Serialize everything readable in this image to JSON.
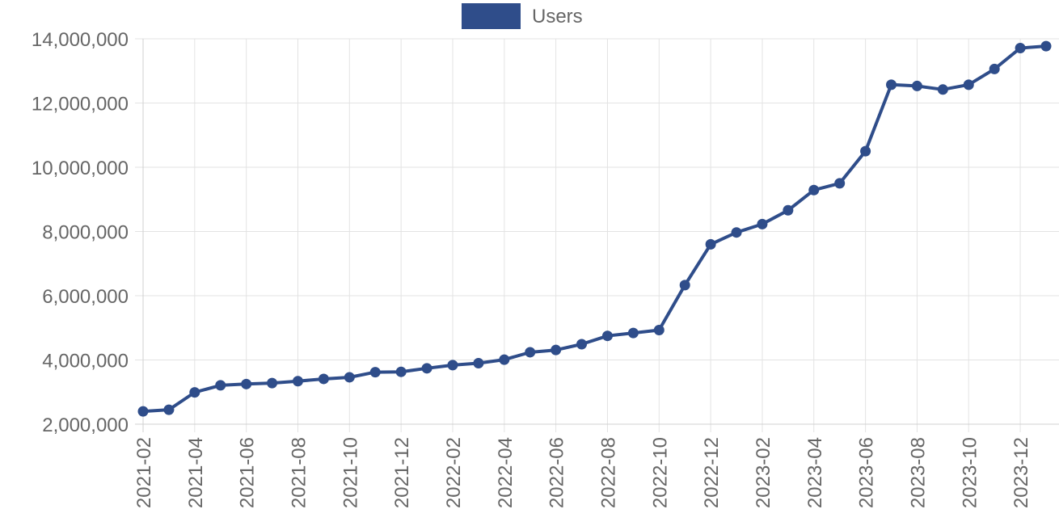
{
  "chart_data": {
    "type": "line",
    "title": "",
    "xlabel": "",
    "ylabel": "",
    "legend": {
      "position": "top-center",
      "label": "Users"
    },
    "grid": true,
    "ylim": [
      2000000,
      14000000
    ],
    "y_ticks": [
      2000000,
      4000000,
      6000000,
      8000000,
      10000000,
      12000000,
      14000000
    ],
    "y_tick_labels": [
      "2,000,000",
      "4,000,000",
      "6,000,000",
      "8,000,000",
      "10,000,000",
      "12,000,000",
      "14,000,000"
    ],
    "x": [
      "2021-02",
      "2021-03",
      "2021-04",
      "2021-05",
      "2021-06",
      "2021-07",
      "2021-08",
      "2021-09",
      "2021-10",
      "2021-11",
      "2021-12",
      "2022-01",
      "2022-02",
      "2022-03",
      "2022-04",
      "2022-05",
      "2022-06",
      "2022-07",
      "2022-08",
      "2022-09",
      "2022-10",
      "2022-11",
      "2022-12",
      "2023-01",
      "2023-02",
      "2023-03",
      "2023-04",
      "2023-05",
      "2023-06",
      "2023-07",
      "2023-08",
      "2023-09",
      "2023-10",
      "2023-11",
      "2023-12",
      "2024-01"
    ],
    "x_tick_labels": [
      "2021-02",
      "2021-04",
      "2021-06",
      "2021-08",
      "2021-10",
      "2021-12",
      "2022-02",
      "2022-04",
      "2022-06",
      "2022-08",
      "2022-10",
      "2022-12",
      "2023-02",
      "2023-04",
      "2023-06",
      "2023-08",
      "2023-10",
      "2023-12"
    ],
    "series": [
      {
        "name": "Users",
        "color": "#2f4d8a",
        "values": [
          2400000,
          2450000,
          2990000,
          3210000,
          3250000,
          3280000,
          3340000,
          3410000,
          3460000,
          3620000,
          3630000,
          3740000,
          3840000,
          3900000,
          4010000,
          4240000,
          4310000,
          4490000,
          4750000,
          4840000,
          4930000,
          6330000,
          7600000,
          7970000,
          8230000,
          8660000,
          9290000,
          9500000,
          10500000,
          12570000,
          12530000,
          12420000,
          12570000,
          13060000,
          13710000,
          13770000
        ]
      }
    ]
  }
}
